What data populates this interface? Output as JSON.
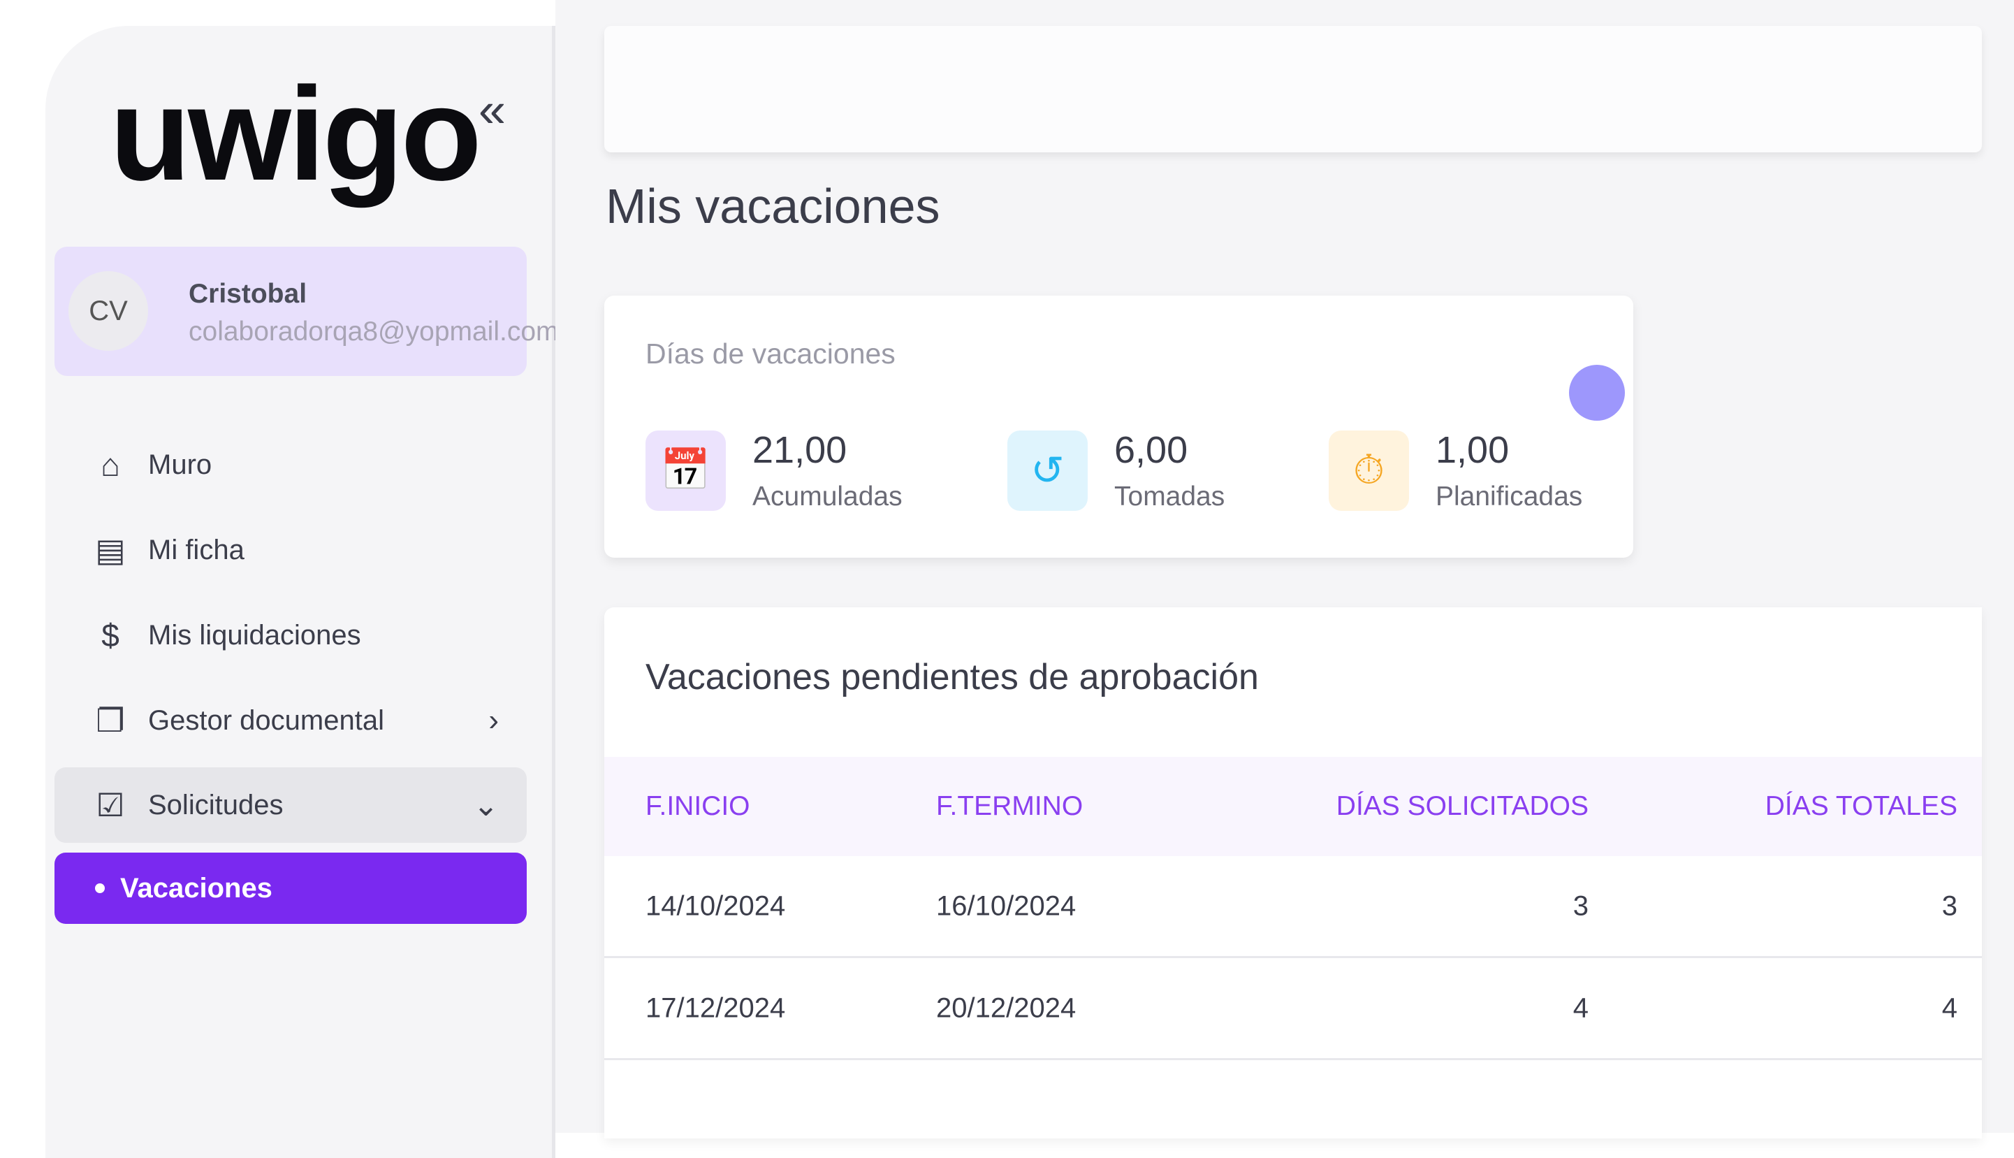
{
  "sidebar": {
    "logo": "uwigo",
    "collapse_icon": "«",
    "user": {
      "initials": "CV",
      "name": "Cristobal",
      "email": "colaboradorqa8@yopmail.com"
    },
    "items": [
      {
        "label": "Muro",
        "icon": "home-icon"
      },
      {
        "label": "Mi ficha",
        "icon": "id-card-icon"
      },
      {
        "label": "Mis liquidaciones",
        "icon": "payslip-icon"
      },
      {
        "label": "Gestor documental",
        "icon": "folder-icon"
      },
      {
        "label": "Solicitudes",
        "icon": "request-icon"
      },
      {
        "label": "Vacaciones"
      }
    ]
  },
  "main": {
    "title": "Mis vacaciones",
    "stats": {
      "heading": "Días de vacaciones",
      "items": [
        {
          "value": "21,00",
          "label": "Acumuladas",
          "color": "#7a29f0",
          "bg": "#ece3fd"
        },
        {
          "value": "6,00",
          "label": "Tomadas",
          "color": "#23b5f0",
          "bg": "#dff4fd"
        },
        {
          "value": "1,00",
          "label": "Planificadas",
          "color": "#f5a623",
          "bg": "#fff3dd"
        }
      ]
    },
    "table": {
      "heading": "Vacaciones pendientes de aprobación",
      "columns": [
        "F.INICIO",
        "F.TERMINO",
        "DÍAS SOLICITADOS",
        "DÍAS TOTALES"
      ],
      "rows": [
        [
          "14/10/2024",
          "16/10/2024",
          "3",
          "3"
        ],
        [
          "17/12/2024",
          "20/12/2024",
          "4",
          "4"
        ]
      ]
    }
  },
  "colors": {
    "accent": "#7a29f0",
    "header_text": "#8a3ff0"
  }
}
